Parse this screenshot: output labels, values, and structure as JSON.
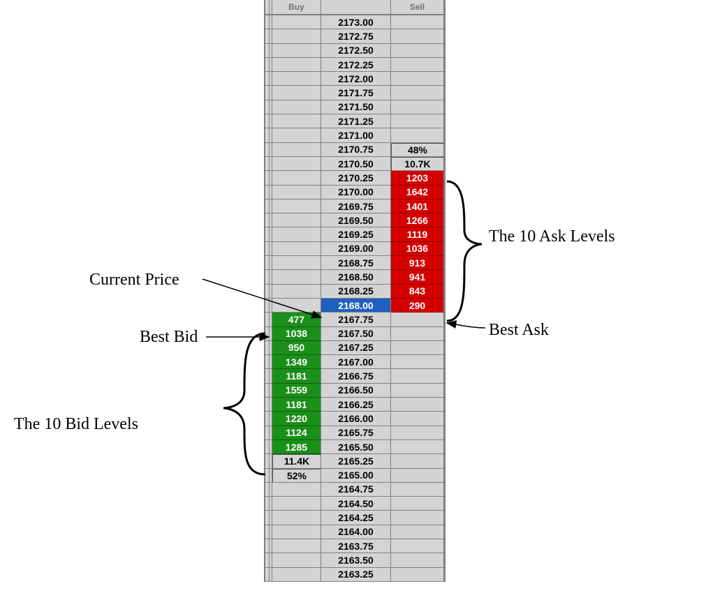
{
  "headers": {
    "buy": "Buy",
    "sell": "Sell"
  },
  "colors": {
    "ask_bg": "#d40000",
    "ask_fg": "#ffffff",
    "bid_bg": "#1a8f1a",
    "bid_fg": "#ffffff",
    "current_price_bg": "#1f5fbf",
    "current_price_fg": "#ffffff",
    "grid_bg": "#d4d4d4",
    "border": "#808080",
    "text": "#000000"
  },
  "annotations": {
    "ask_levels": "The 10 Ask Levels",
    "bid_levels": "The 10 Bid Levels",
    "current_price": "Current Price",
    "best_ask": "Best Ask",
    "best_bid": "Best Bid"
  },
  "rows": [
    {
      "price": "2173.00"
    },
    {
      "price": "2172.75"
    },
    {
      "price": "2172.50"
    },
    {
      "price": "2172.25"
    },
    {
      "price": "2172.00"
    },
    {
      "price": "2171.75"
    },
    {
      "price": "2171.50"
    },
    {
      "price": "2171.25"
    },
    {
      "price": "2171.00"
    },
    {
      "price": "2170.75",
      "sell": "48%",
      "sell_style": "stat"
    },
    {
      "price": "2170.50",
      "sell": "10.7K",
      "sell_style": "stat"
    },
    {
      "price": "2170.25",
      "sell": "1203",
      "sell_style": "ask"
    },
    {
      "price": "2170.00",
      "sell": "1642",
      "sell_style": "ask"
    },
    {
      "price": "2169.75",
      "sell": "1401",
      "sell_style": "ask"
    },
    {
      "price": "2169.50",
      "sell": "1266",
      "sell_style": "ask"
    },
    {
      "price": "2169.25",
      "sell": "1119",
      "sell_style": "ask"
    },
    {
      "price": "2169.00",
      "sell": "1036",
      "sell_style": "ask"
    },
    {
      "price": "2168.75",
      "sell": "913",
      "sell_style": "ask"
    },
    {
      "price": "2168.50",
      "sell": "941",
      "sell_style": "ask"
    },
    {
      "price": "2168.25",
      "sell": "843",
      "sell_style": "ask"
    },
    {
      "price": "2168.00",
      "sell": "290",
      "sell_style": "ask",
      "price_style": "current"
    },
    {
      "price": "2167.75",
      "buy": "477",
      "buy_style": "bid"
    },
    {
      "price": "2167.50",
      "buy": "1038",
      "buy_style": "bid"
    },
    {
      "price": "2167.25",
      "buy": "950",
      "buy_style": "bid"
    },
    {
      "price": "2167.00",
      "buy": "1349",
      "buy_style": "bid"
    },
    {
      "price": "2166.75",
      "buy": "1181",
      "buy_style": "bid"
    },
    {
      "price": "2166.50",
      "buy": "1559",
      "buy_style": "bid"
    },
    {
      "price": "2166.25",
      "buy": "1181",
      "buy_style": "bid"
    },
    {
      "price": "2166.00",
      "buy": "1220",
      "buy_style": "bid"
    },
    {
      "price": "2165.75",
      "buy": "1124",
      "buy_style": "bid"
    },
    {
      "price": "2165.50",
      "buy": "1285",
      "buy_style": "bid"
    },
    {
      "price": "2165.25",
      "buy": "11.4K",
      "buy_style": "stat"
    },
    {
      "price": "2165.00",
      "buy": "52%",
      "buy_style": "stat"
    },
    {
      "price": "2164.75"
    },
    {
      "price": "2164.50"
    },
    {
      "price": "2164.25"
    },
    {
      "price": "2164.00"
    },
    {
      "price": "2163.75"
    },
    {
      "price": "2163.50"
    },
    {
      "price": "2163.25"
    }
  ]
}
